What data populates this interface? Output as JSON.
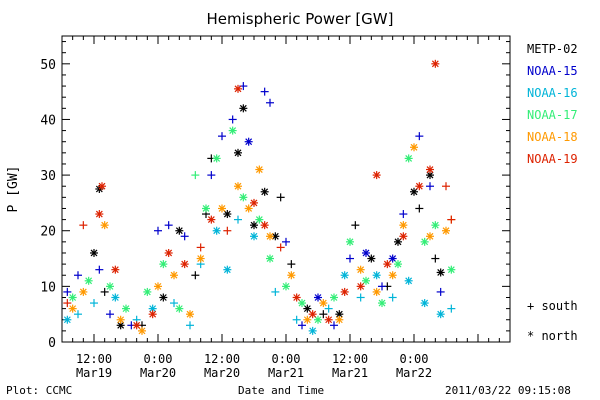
{
  "chart_data": {
    "type": "scatter",
    "title": "Hemispheric Power [GW]",
    "xlabel": "Date and Time",
    "ylabel": "P [GW]",
    "ylim": [
      0,
      55
    ],
    "yticks": [
      0,
      10,
      20,
      30,
      40,
      50
    ],
    "xlim_hours": [
      -6,
      78
    ],
    "x_ticks": [
      {
        "hour": 0,
        "time": "12:00",
        "date": "Mar19"
      },
      {
        "hour": 12,
        "time": "0:00",
        "date": "Mar20"
      },
      {
        "hour": 24,
        "time": "12:00",
        "date": "Mar20"
      },
      {
        "hour": 36,
        "time": "0:00",
        "date": "Mar21"
      },
      {
        "hour": 48,
        "time": "12:00",
        "date": "Mar21"
      },
      {
        "hour": 60,
        "time": "0:00",
        "date": "Mar22"
      }
    ],
    "grid": false,
    "legend_position": "right",
    "marker_legend": [
      {
        "symbol": "+",
        "label": "south"
      },
      {
        "symbol": "*",
        "label": "north"
      }
    ],
    "series": [
      {
        "name": "METP-02",
        "color": "#000000",
        "points": [
          {
            "x": 0,
            "y": 16,
            "m": "*"
          },
          {
            "x": 1,
            "y": 27.5,
            "m": "*"
          },
          {
            "x": 2,
            "y": 9,
            "m": "+"
          },
          {
            "x": 5,
            "y": 3,
            "m": "*"
          },
          {
            "x": 9,
            "y": 3,
            "m": "+"
          },
          {
            "x": 13,
            "y": 8,
            "m": "*"
          },
          {
            "x": 16,
            "y": 20,
            "m": "*"
          },
          {
            "x": 19,
            "y": 12,
            "m": "+"
          },
          {
            "x": 21,
            "y": 23,
            "m": "+"
          },
          {
            "x": 22,
            "y": 33,
            "m": "+"
          },
          {
            "x": 25,
            "y": 23,
            "m": "*"
          },
          {
            "x": 27,
            "y": 34,
            "m": "*"
          },
          {
            "x": 28,
            "y": 42,
            "m": "*"
          },
          {
            "x": 30,
            "y": 21,
            "m": "*"
          },
          {
            "x": 32,
            "y": 27,
            "m": "*"
          },
          {
            "x": 34,
            "y": 19,
            "m": "*"
          },
          {
            "x": 35,
            "y": 26,
            "m": "+"
          },
          {
            "x": 37,
            "y": 14,
            "m": "+"
          },
          {
            "x": 40,
            "y": 6,
            "m": "*"
          },
          {
            "x": 43,
            "y": 5,
            "m": "+"
          },
          {
            "x": 46,
            "y": 5,
            "m": "*"
          },
          {
            "x": 49,
            "y": 21,
            "m": "+"
          },
          {
            "x": 52,
            "y": 15,
            "m": "*"
          },
          {
            "x": 55,
            "y": 10,
            "m": "+"
          },
          {
            "x": 57,
            "y": 18,
            "m": "*"
          },
          {
            "x": 60,
            "y": 27,
            "m": "*"
          },
          {
            "x": 61,
            "y": 24,
            "m": "+"
          },
          {
            "x": 63,
            "y": 30,
            "m": "*"
          },
          {
            "x": 64,
            "y": 15,
            "m": "+"
          },
          {
            "x": 65,
            "y": 12.5,
            "m": "*"
          }
        ]
      },
      {
        "name": "NOAA-15",
        "color": "#0000cc",
        "points": [
          {
            "x": -5,
            "y": 9,
            "m": "+"
          },
          {
            "x": -3,
            "y": 12,
            "m": "+"
          },
          {
            "x": 1,
            "y": 13,
            "m": "+"
          },
          {
            "x": 3,
            "y": 5,
            "m": "+"
          },
          {
            "x": 7,
            "y": 3,
            "m": "+"
          },
          {
            "x": 12,
            "y": 20,
            "m": "+"
          },
          {
            "x": 14,
            "y": 21,
            "m": "+"
          },
          {
            "x": 17,
            "y": 19,
            "m": "+"
          },
          {
            "x": 22,
            "y": 30,
            "m": "+"
          },
          {
            "x": 24,
            "y": 37,
            "m": "+"
          },
          {
            "x": 26,
            "y": 40,
            "m": "+"
          },
          {
            "x": 28,
            "y": 46,
            "m": "+"
          },
          {
            "x": 29,
            "y": 36,
            "m": "*"
          },
          {
            "x": 32,
            "y": 45,
            "m": "+"
          },
          {
            "x": 33,
            "y": 43,
            "m": "+"
          },
          {
            "x": 36,
            "y": 18,
            "m": "+"
          },
          {
            "x": 39,
            "y": 3,
            "m": "+"
          },
          {
            "x": 42,
            "y": 8,
            "m": "*"
          },
          {
            "x": 45,
            "y": 3,
            "m": "+"
          },
          {
            "x": 48,
            "y": 15,
            "m": "+"
          },
          {
            "x": 51,
            "y": 16,
            "m": "*"
          },
          {
            "x": 54,
            "y": 10,
            "m": "+"
          },
          {
            "x": 56,
            "y": 15,
            "m": "*"
          },
          {
            "x": 58,
            "y": 23,
            "m": "+"
          },
          {
            "x": 61,
            "y": 37,
            "m": "+"
          },
          {
            "x": 63,
            "y": 28,
            "m": "+"
          },
          {
            "x": 65,
            "y": 9,
            "m": "+"
          }
        ]
      },
      {
        "name": "NOAA-16",
        "color": "#00b4d8",
        "points": [
          {
            "x": -5,
            "y": 4,
            "m": "*"
          },
          {
            "x": -3,
            "y": 5,
            "m": "+"
          },
          {
            "x": 0,
            "y": 7,
            "m": "+"
          },
          {
            "x": 4,
            "y": 8,
            "m": "*"
          },
          {
            "x": 8,
            "y": 4,
            "m": "+"
          },
          {
            "x": 11,
            "y": 6,
            "m": "*"
          },
          {
            "x": 15,
            "y": 7,
            "m": "+"
          },
          {
            "x": 18,
            "y": 3,
            "m": "+"
          },
          {
            "x": 20,
            "y": 14,
            "m": "+"
          },
          {
            "x": 23,
            "y": 20,
            "m": "*"
          },
          {
            "x": 25,
            "y": 13,
            "m": "*"
          },
          {
            "x": 27,
            "y": 22,
            "m": "+"
          },
          {
            "x": 30,
            "y": 19,
            "m": "*"
          },
          {
            "x": 34,
            "y": 9,
            "m": "+"
          },
          {
            "x": 38,
            "y": 4,
            "m": "+"
          },
          {
            "x": 41,
            "y": 2,
            "m": "*"
          },
          {
            "x": 44,
            "y": 6,
            "m": "+"
          },
          {
            "x": 47,
            "y": 12,
            "m": "*"
          },
          {
            "x": 50,
            "y": 8,
            "m": "+"
          },
          {
            "x": 53,
            "y": 12,
            "m": "*"
          },
          {
            "x": 56,
            "y": 8,
            "m": "+"
          },
          {
            "x": 59,
            "y": 11,
            "m": "*"
          },
          {
            "x": 62,
            "y": 7,
            "m": "*"
          },
          {
            "x": 65,
            "y": 5,
            "m": "*"
          },
          {
            "x": 67,
            "y": 6,
            "m": "+"
          }
        ]
      },
      {
        "name": "NOAA-17",
        "color": "#33ee77",
        "points": [
          {
            "x": -4,
            "y": 8,
            "m": "*"
          },
          {
            "x": -1,
            "y": 11,
            "m": "*"
          },
          {
            "x": 3,
            "y": 10,
            "m": "*"
          },
          {
            "x": 6,
            "y": 6,
            "m": "*"
          },
          {
            "x": 10,
            "y": 9,
            "m": "*"
          },
          {
            "x": 13,
            "y": 14,
            "m": "*"
          },
          {
            "x": 16,
            "y": 6,
            "m": "*"
          },
          {
            "x": 19,
            "y": 30,
            "m": "+"
          },
          {
            "x": 21,
            "y": 24,
            "m": "*"
          },
          {
            "x": 23,
            "y": 33,
            "m": "*"
          },
          {
            "x": 26,
            "y": 38,
            "m": "*"
          },
          {
            "x": 28,
            "y": 26,
            "m": "*"
          },
          {
            "x": 31,
            "y": 22,
            "m": "*"
          },
          {
            "x": 33,
            "y": 15,
            "m": "*"
          },
          {
            "x": 36,
            "y": 10,
            "m": "*"
          },
          {
            "x": 39,
            "y": 7,
            "m": "*"
          },
          {
            "x": 42,
            "y": 4,
            "m": "*"
          },
          {
            "x": 45,
            "y": 8,
            "m": "*"
          },
          {
            "x": 48,
            "y": 18,
            "m": "*"
          },
          {
            "x": 51,
            "y": 11,
            "m": "*"
          },
          {
            "x": 54,
            "y": 7,
            "m": "*"
          },
          {
            "x": 57,
            "y": 14,
            "m": "*"
          },
          {
            "x": 59,
            "y": 33,
            "m": "*"
          },
          {
            "x": 62,
            "y": 18,
            "m": "*"
          },
          {
            "x": 64,
            "y": 21,
            "m": "*"
          },
          {
            "x": 67,
            "y": 13,
            "m": "*"
          }
        ]
      },
      {
        "name": "NOAA-18",
        "color": "#ff9900",
        "points": [
          {
            "x": -4,
            "y": 6,
            "m": "*"
          },
          {
            "x": -2,
            "y": 9,
            "m": "*"
          },
          {
            "x": 2,
            "y": 21,
            "m": "*"
          },
          {
            "x": 5,
            "y": 4,
            "m": "*"
          },
          {
            "x": 9,
            "y": 2,
            "m": "*"
          },
          {
            "x": 12,
            "y": 10,
            "m": "*"
          },
          {
            "x": 15,
            "y": 12,
            "m": "*"
          },
          {
            "x": 18,
            "y": 5,
            "m": "*"
          },
          {
            "x": 20,
            "y": 15,
            "m": "*"
          },
          {
            "x": 24,
            "y": 24,
            "m": "*"
          },
          {
            "x": 27,
            "y": 28,
            "m": "*"
          },
          {
            "x": 29,
            "y": 24,
            "m": "*"
          },
          {
            "x": 31,
            "y": 31,
            "m": "*"
          },
          {
            "x": 33,
            "y": 19,
            "m": "*"
          },
          {
            "x": 37,
            "y": 12,
            "m": "*"
          },
          {
            "x": 40,
            "y": 4,
            "m": "*"
          },
          {
            "x": 43,
            "y": 7,
            "m": "*"
          },
          {
            "x": 46,
            "y": 4,
            "m": "*"
          },
          {
            "x": 50,
            "y": 13,
            "m": "*"
          },
          {
            "x": 53,
            "y": 9,
            "m": "*"
          },
          {
            "x": 56,
            "y": 12,
            "m": "*"
          },
          {
            "x": 58,
            "y": 21,
            "m": "*"
          },
          {
            "x": 60,
            "y": 35,
            "m": "*"
          },
          {
            "x": 63,
            "y": 19,
            "m": "*"
          },
          {
            "x": 66,
            "y": 20,
            "m": "*"
          },
          {
            "x": 67,
            "y": 22,
            "m": "+"
          }
        ]
      },
      {
        "name": "NOAA-19",
        "color": "#dd2200",
        "points": [
          {
            "x": -5,
            "y": 7,
            "m": "+"
          },
          {
            "x": -2,
            "y": 21,
            "m": "+"
          },
          {
            "x": 1,
            "y": 23,
            "m": "*"
          },
          {
            "x": 1.5,
            "y": 28,
            "m": "*"
          },
          {
            "x": 4,
            "y": 13,
            "m": "*"
          },
          {
            "x": 8,
            "y": 3,
            "m": "*"
          },
          {
            "x": 11,
            "y": 5,
            "m": "*"
          },
          {
            "x": 14,
            "y": 16,
            "m": "*"
          },
          {
            "x": 17,
            "y": 14,
            "m": "*"
          },
          {
            "x": 20,
            "y": 17,
            "m": "+"
          },
          {
            "x": 22,
            "y": 22,
            "m": "*"
          },
          {
            "x": 25,
            "y": 20,
            "m": "+"
          },
          {
            "x": 27,
            "y": 45.5,
            "m": "*"
          },
          {
            "x": 30,
            "y": 25,
            "m": "*"
          },
          {
            "x": 32,
            "y": 21,
            "m": "*"
          },
          {
            "x": 35,
            "y": 17,
            "m": "+"
          },
          {
            "x": 38,
            "y": 8,
            "m": "*"
          },
          {
            "x": 41,
            "y": 5,
            "m": "*"
          },
          {
            "x": 44,
            "y": 4,
            "m": "*"
          },
          {
            "x": 47,
            "y": 9,
            "m": "*"
          },
          {
            "x": 50,
            "y": 10,
            "m": "*"
          },
          {
            "x": 53,
            "y": 30,
            "m": "*"
          },
          {
            "x": 55,
            "y": 14,
            "m": "*"
          },
          {
            "x": 58,
            "y": 19,
            "m": "*"
          },
          {
            "x": 61,
            "y": 28,
            "m": "*"
          },
          {
            "x": 63,
            "y": 31,
            "m": "*"
          },
          {
            "x": 64,
            "y": 50,
            "m": "*"
          },
          {
            "x": 66,
            "y": 28,
            "m": "+"
          },
          {
            "x": 67,
            "y": 22,
            "m": "+"
          }
        ]
      }
    ]
  },
  "footer": {
    "plot_credit": "Plot: CCMC",
    "timestamp": "2011/03/22 09:15:08"
  }
}
